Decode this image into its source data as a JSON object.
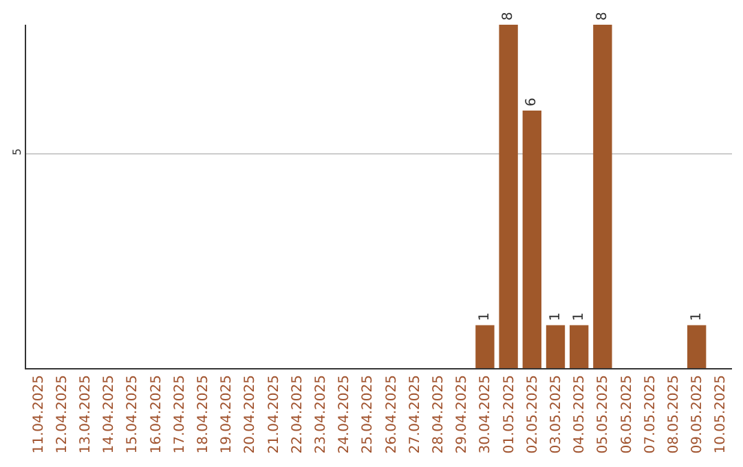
{
  "chart_data": {
    "type": "bar",
    "categories": [
      "11.04.2025",
      "12.04.2025",
      "13.04.2025",
      "14.04.2025",
      "15.04.2025",
      "16.04.2025",
      "17.04.2025",
      "18.04.2025",
      "19.04.2025",
      "20.04.2025",
      "21.04.2025",
      "22.04.2025",
      "23.04.2025",
      "24.04.2025",
      "25.04.2025",
      "26.04.2025",
      "27.04.2025",
      "28.04.2025",
      "29.04.2025",
      "30.04.2025",
      "01.05.2025",
      "02.05.2025",
      "03.05.2025",
      "04.05.2025",
      "05.05.2025",
      "06.05.2025",
      "07.05.2025",
      "08.05.2025",
      "09.05.2025",
      "10.05.2025"
    ],
    "values": [
      null,
      null,
      null,
      null,
      null,
      null,
      null,
      null,
      null,
      null,
      null,
      null,
      null,
      null,
      null,
      null,
      null,
      null,
      null,
      1,
      8,
      6,
      1,
      1,
      8,
      null,
      null,
      null,
      1,
      null
    ],
    "data_labels": true,
    "color": "#a0582a",
    "ylim": [
      0,
      8
    ],
    "yticks": [
      5
    ],
    "grid": "y",
    "legend": false
  }
}
